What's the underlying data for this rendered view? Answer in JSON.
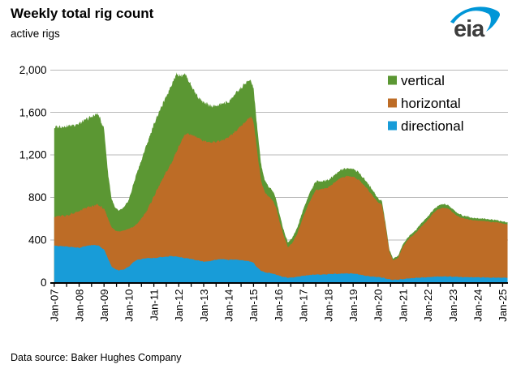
{
  "header": {
    "title": "Weekly total rig count",
    "subtitle": "active rigs"
  },
  "logo": {
    "text": "eia",
    "swoosh_color": "#0096d7",
    "text_color": "#3c3c3c"
  },
  "footer": {
    "source": "Data source: Baker Hughes Company"
  },
  "legend": [
    {
      "label": "vertical",
      "color": "#5b9733"
    },
    {
      "label": "horizontal",
      "color": "#bd6c26"
    },
    {
      "label": "directional",
      "color": "#189cd8"
    }
  ],
  "colors": {
    "grid": "#b9b9b9",
    "axis": "#000000",
    "text": "#000000"
  },
  "chart_data": {
    "type": "area",
    "stacked": true,
    "title": "Weekly total rig count",
    "ylabel": "active rigs",
    "xlabel": "",
    "grid": true,
    "legend_position": "top-right",
    "ylim": [
      0,
      2000
    ],
    "yticks": [
      0,
      400,
      800,
      1200,
      1600,
      2000
    ],
    "ytick_labels": [
      "0",
      "400",
      "800",
      "1,200",
      "1,600",
      "2,000"
    ],
    "x_range": [
      2007.0,
      2025.2
    ],
    "xtick_labels": [
      "Jan-07",
      "Jan-08",
      "Jan-09",
      "Jan-10",
      "Jan-11",
      "Jan-12",
      "Jan-13",
      "Jan-14",
      "Jan-15",
      "Jan-16",
      "Jan-17",
      "Jan-18",
      "Jan-19",
      "Jan-20",
      "Jan-21",
      "Jan-22",
      "Jan-23",
      "Jan-24",
      "Jan-25"
    ],
    "x": [
      2007.0,
      2007.25,
      2007.5,
      2007.75,
      2008.0,
      2008.25,
      2008.5,
      2008.75,
      2009.0,
      2009.15,
      2009.3,
      2009.45,
      2009.6,
      2009.8,
      2010.0,
      2010.15,
      2010.3,
      2010.5,
      2010.7,
      2010.9,
      2011.1,
      2011.3,
      2011.5,
      2011.7,
      2011.9,
      2012.1,
      2012.25,
      2012.4,
      2012.6,
      2012.8,
      2013.0,
      2013.25,
      2013.5,
      2013.75,
      2014.0,
      2014.25,
      2014.5,
      2014.7,
      2014.88,
      2015.0,
      2015.15,
      2015.3,
      2015.45,
      2015.6,
      2015.75,
      2015.9,
      2016.05,
      2016.2,
      2016.38,
      2016.55,
      2016.75,
      2017.0,
      2017.25,
      2017.5,
      2017.75,
      2018.0,
      2018.25,
      2018.5,
      2018.75,
      2019.0,
      2019.25,
      2019.5,
      2019.75,
      2020.0,
      2020.15,
      2020.3,
      2020.45,
      2020.6,
      2020.8,
      2021.0,
      2021.25,
      2021.5,
      2021.75,
      2022.0,
      2022.2,
      2022.4,
      2022.6,
      2022.8,
      2023.0,
      2023.2,
      2023.4,
      2023.6,
      2023.8,
      2024.0,
      2024.25,
      2024.5,
      2024.75,
      2025.0,
      2025.2
    ],
    "series": [
      {
        "name": "directional",
        "color": "#189cd8",
        "values": [
          345,
          342,
          338,
          332,
          325,
          342,
          352,
          350,
          310,
          230,
          150,
          125,
          115,
          123,
          150,
          185,
          210,
          220,
          228,
          228,
          232,
          238,
          242,
          248,
          245,
          235,
          230,
          225,
          215,
          205,
          195,
          200,
          215,
          220,
          212,
          215,
          210,
          203,
          197,
          185,
          140,
          110,
          95,
          90,
          85,
          75,
          62,
          52,
          45,
          47,
          52,
          62,
          70,
          75,
          73,
          78,
          80,
          82,
          85,
          84,
          76,
          62,
          55,
          50,
          47,
          38,
          28,
          24,
          26,
          32,
          38,
          42,
          46,
          50,
          53,
          55,
          56,
          55,
          54,
          52,
          50,
          49,
          48,
          48,
          47,
          46,
          45,
          46,
          44
        ]
      },
      {
        "name": "horizontal",
        "color": "#bd6c26",
        "values": [
          275,
          283,
          292,
          318,
          345,
          358,
          363,
          383,
          380,
          380,
          370,
          365,
          365,
          367,
          355,
          335,
          335,
          380,
          442,
          532,
          628,
          712,
          798,
          872,
          985,
          1095,
          1160,
          1175,
          1165,
          1150,
          1135,
          1120,
          1110,
          1120,
          1153,
          1205,
          1265,
          1317,
          1363,
          1335,
          1090,
          850,
          755,
          720,
          695,
          635,
          508,
          398,
          285,
          323,
          403,
          558,
          690,
          795,
          807,
          817,
          860,
          903,
          915,
          911,
          884,
          838,
          770,
          705,
          688,
          497,
          264,
          184,
          204,
          306,
          377,
          420,
          484,
          538,
          595,
          633,
          646,
          643,
          606,
          570,
          554,
          546,
          538,
          534,
          531,
          524,
          522,
          509,
          501
        ]
      },
      {
        "name": "vertical",
        "color": "#5b9733",
        "values": [
          840,
          843,
          840,
          832,
          825,
          830,
          845,
          857,
          760,
          440,
          270,
          210,
          195,
          215,
          275,
          380,
          475,
          550,
          620,
          660,
          690,
          700,
          710,
          740,
          730,
          620,
          575,
          500,
          430,
          385,
          360,
          345,
          335,
          345,
          335,
          350,
          355,
          360,
          345,
          310,
          220,
          160,
          110,
          95,
          90,
          80,
          70,
          50,
          45,
          50,
          55,
          70,
          80,
          80,
          75,
          70,
          70,
          75,
          75,
          75,
          70,
          60,
          55,
          35,
          35,
          25,
          18,
          17,
          20,
          22,
          25,
          28,
          30,
          32,
          32,
          32,
          33,
          32,
          30,
          28,
          26,
          25,
          24,
          23,
          22,
          22,
          21,
          20,
          20
        ]
      }
    ]
  }
}
